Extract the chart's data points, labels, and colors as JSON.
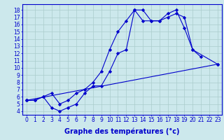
{
  "background_color": "#cce8ec",
  "grid_color": "#aacccc",
  "line_color": "#0000cc",
  "xlabel": "Graphe des températures (°c)",
  "xlabel_fontsize": 7,
  "ylabel_ticks": [
    4,
    5,
    6,
    7,
    8,
    9,
    10,
    11,
    12,
    13,
    14,
    15,
    16,
    17,
    18
  ],
  "xlim": [
    -0.5,
    23.5
  ],
  "ylim": [
    3.5,
    18.8
  ],
  "xticks": [
    0,
    1,
    2,
    3,
    4,
    5,
    6,
    7,
    8,
    9,
    10,
    11,
    12,
    13,
    14,
    15,
    16,
    17,
    18,
    19,
    20,
    21,
    22,
    23
  ],
  "line1_x": [
    0,
    1,
    2,
    3,
    4,
    5,
    6,
    7,
    8,
    9,
    10,
    11,
    12,
    13,
    14,
    15,
    16,
    17,
    18,
    19,
    20,
    21
  ],
  "line1_y": [
    5.5,
    5.5,
    6.0,
    4.5,
    4.0,
    4.5,
    5.0,
    6.5,
    7.5,
    7.5,
    9.5,
    12.0,
    12.5,
    18.0,
    16.5,
    16.5,
    16.5,
    17.5,
    18.0,
    15.5,
    12.5,
    11.5
  ],
  "line2_x": [
    0,
    1,
    2,
    3,
    4,
    5,
    6,
    7,
    8,
    9,
    10,
    11,
    12,
    13,
    14,
    15,
    16,
    17,
    18,
    19,
    20,
    23
  ],
  "line2_y": [
    5.5,
    5.5,
    6.0,
    6.5,
    5.0,
    5.5,
    6.5,
    7.0,
    8.0,
    9.5,
    12.5,
    15.0,
    16.5,
    18.0,
    18.0,
    16.5,
    16.5,
    17.0,
    17.5,
    17.0,
    12.5,
    10.5
  ],
  "line3_x": [
    0,
    23
  ],
  "line3_y": [
    5.5,
    10.5
  ],
  "tick_fontsize": 5.5
}
